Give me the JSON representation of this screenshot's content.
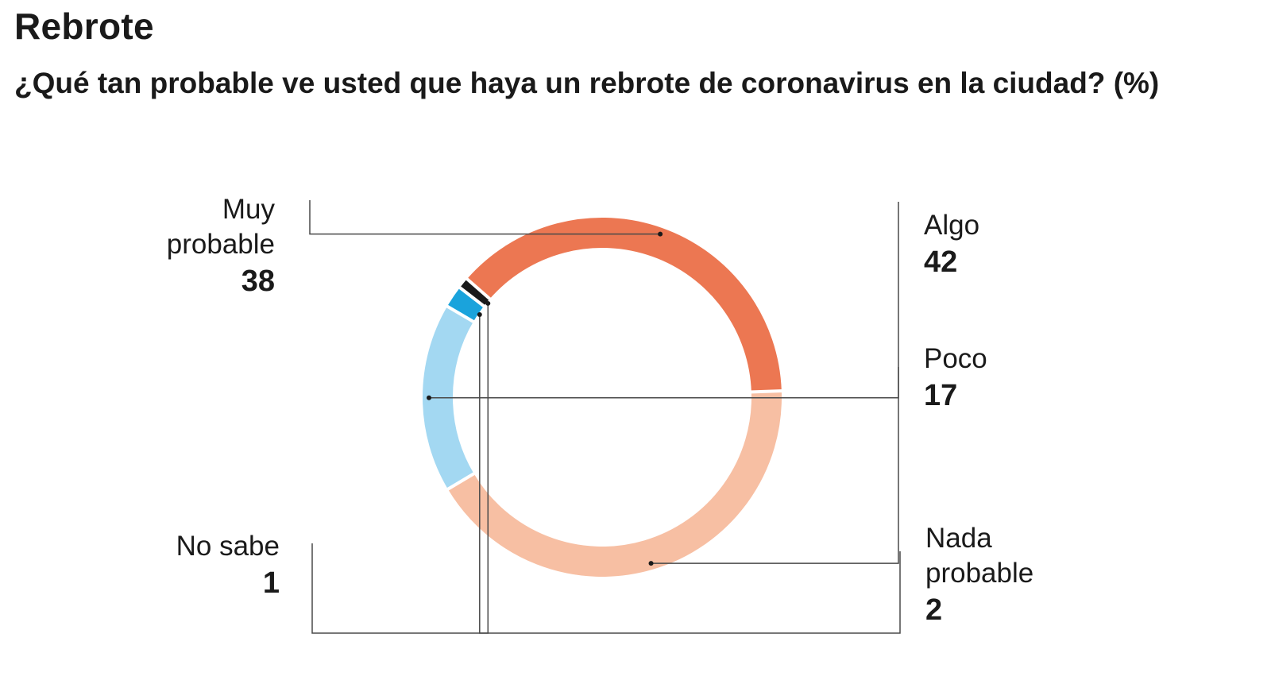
{
  "chart_data": {
    "type": "pie",
    "title": "Rebrote",
    "subtitle": "¿Qué tan probable ve usted que haya un rebrote de coronavirus en la ciudad? (%)",
    "unit": "%",
    "categories": [
      "Algo",
      "Poco",
      "Nada probable",
      "No sabe",
      "Muy probable"
    ],
    "values": [
      42,
      17,
      2,
      1,
      38
    ],
    "labels": [
      {
        "name": "Algo",
        "value": "42"
      },
      {
        "name": "Poco",
        "value": "17"
      },
      {
        "name": "Nada\nprobable",
        "value": "2"
      },
      {
        "name": "No sabe",
        "value": "1"
      },
      {
        "name": "Muy\nprobable",
        "value": "38"
      }
    ],
    "colors": [
      "#f7bfa3",
      "#a3d8f2",
      "#1aa3dc",
      "#1a1a1a",
      "#ec7752"
    ],
    "donut": true
  }
}
